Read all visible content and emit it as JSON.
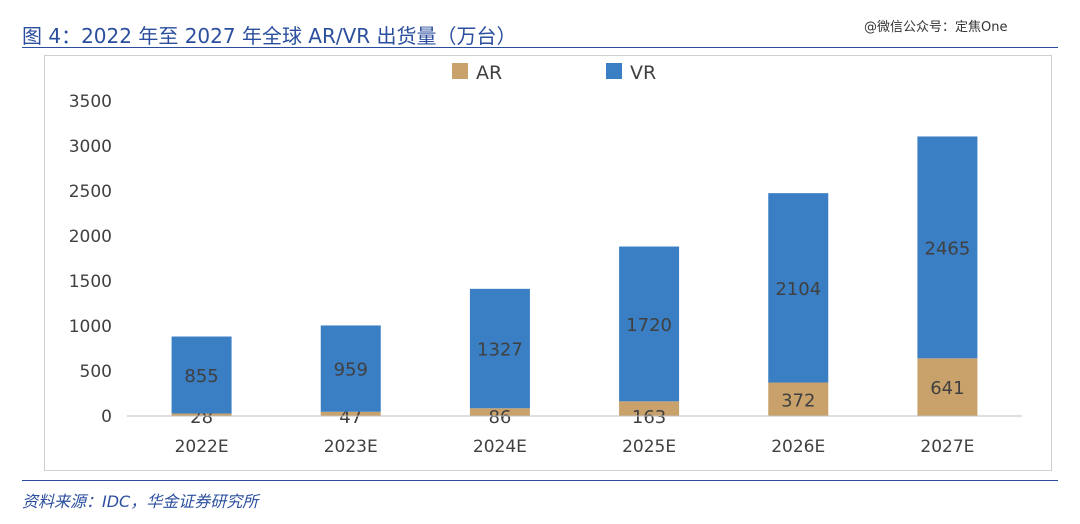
{
  "header": {
    "title": "图 4：2022 年至 2027 年全球 AR/VR 出货量（万台）",
    "watermark": "@微信公众号：定焦One"
  },
  "footer": {
    "source": "资料来源：IDC，华金证券研究所"
  },
  "colors": {
    "ar": "#C9A16B",
    "vr": "#3A7EC4",
    "accent": "#2B4F9E"
  },
  "chart_data": {
    "type": "bar",
    "stacked": true,
    "categories": [
      "2022E",
      "2023E",
      "2024E",
      "2025E",
      "2026E",
      "2027E"
    ],
    "series": [
      {
        "name": "AR",
        "values": [
          28,
          47,
          86,
          163,
          372,
          641
        ]
      },
      {
        "name": "VR",
        "values": [
          855,
          959,
          1327,
          1720,
          2104,
          2465
        ]
      }
    ],
    "yticks": [
      "0",
      "500",
      "1000",
      "1500",
      "2000",
      "2500",
      "3000",
      "3500"
    ],
    "ylim": [
      0,
      3500
    ],
    "legend_position": "top-center",
    "grid": false
  }
}
